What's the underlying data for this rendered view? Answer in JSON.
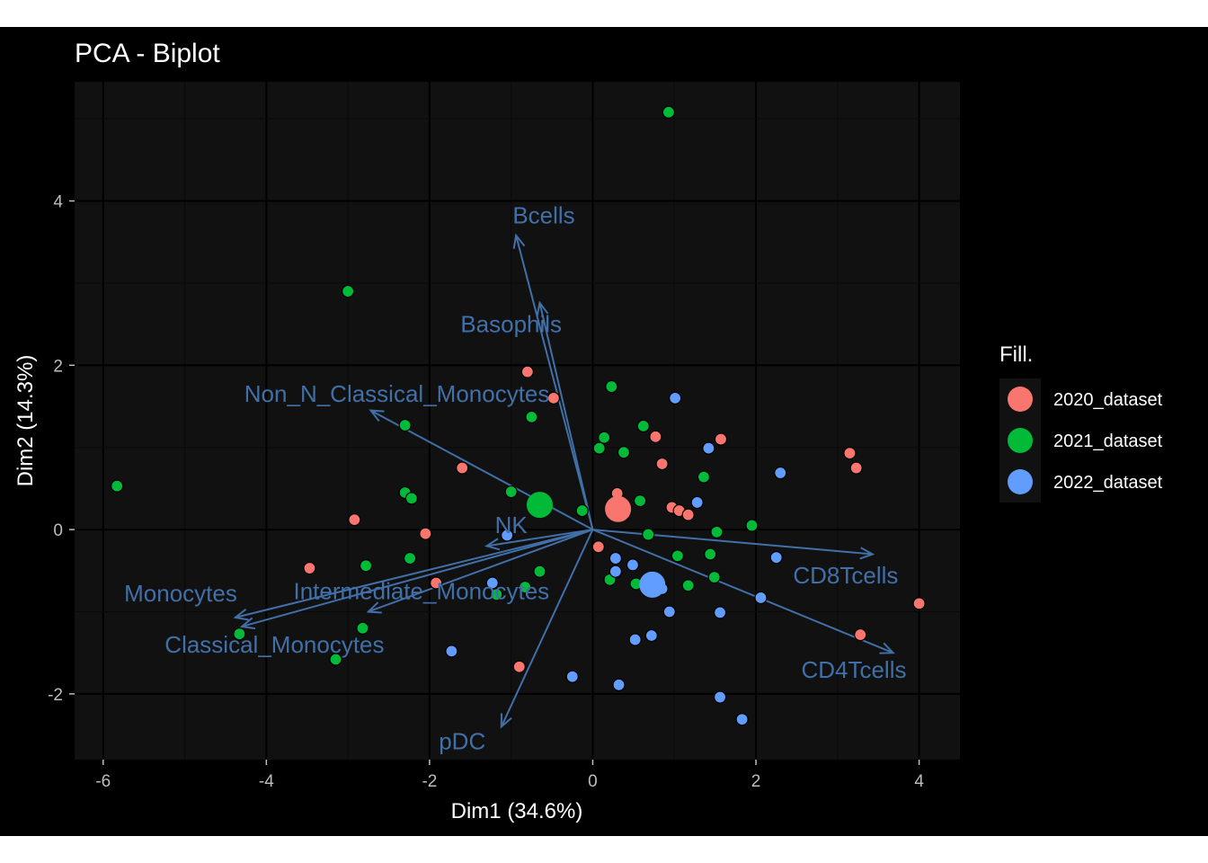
{
  "chart_data": {
    "type": "scatter",
    "title": "PCA - Biplot",
    "xlabel": "Dim1 (34.6%)",
    "ylabel": "Dim2 (14.3%)",
    "xlim": [
      -6.35,
      4.5
    ],
    "ylim": [
      -2.8,
      5.45
    ],
    "x_ticks": [
      -6,
      -4,
      -2,
      0,
      2,
      4
    ],
    "y_ticks": [
      -2,
      0,
      2,
      4
    ],
    "x_tick_labels": [
      "-6",
      "-4",
      "-2",
      "0",
      "2",
      "4"
    ],
    "y_tick_labels": [
      "-2",
      "0",
      "2",
      "4"
    ],
    "grid": true,
    "legend": {
      "title": "Fill.",
      "position": "right",
      "entries": [
        {
          "name": "2020_dataset",
          "color": "#F8766D"
        },
        {
          "name": "2021_dataset",
          "color": "#00BA38"
        },
        {
          "name": "2022_dataset",
          "color": "#619CFF"
        }
      ]
    },
    "series": [
      {
        "name": "2020_dataset",
        "color": "#F8766D",
        "points": [
          [
            -0.8,
            1.92
          ],
          [
            -0.48,
            1.6
          ],
          [
            -1.6,
            0.75
          ],
          [
            -2.92,
            0.12
          ],
          [
            -2.05,
            -0.05
          ],
          [
            -3.47,
            -0.47
          ],
          [
            -1.92,
            -0.65
          ],
          [
            -0.9,
            -1.67
          ],
          [
            0.07,
            -0.21
          ],
          [
            0.3,
            0.44
          ],
          [
            0.85,
            0.8
          ],
          [
            0.77,
            1.13
          ],
          [
            0.97,
            0.27
          ],
          [
            1.06,
            0.23
          ],
          [
            1.17,
            0.18
          ],
          [
            1.57,
            1.1
          ],
          [
            3.15,
            0.93
          ],
          [
            3.23,
            0.75
          ],
          [
            4.0,
            -0.9
          ],
          [
            3.28,
            -1.28
          ]
        ],
        "centroid": [
          0.31,
          0.25
        ]
      },
      {
        "name": "2021_dataset",
        "color": "#00BA38",
        "points": [
          [
            0.93,
            5.08
          ],
          [
            -3.0,
            2.9
          ],
          [
            -5.83,
            0.53
          ],
          [
            -2.3,
            1.27
          ],
          [
            -2.3,
            0.45
          ],
          [
            -2.22,
            0.38
          ],
          [
            -0.75,
            1.37
          ],
          [
            0.23,
            1.74
          ],
          [
            0.14,
            1.12
          ],
          [
            0.08,
            0.99
          ],
          [
            0.62,
            1.26
          ],
          [
            0.38,
            0.94
          ],
          [
            -1.0,
            0.46
          ],
          [
            -0.13,
            0.23
          ],
          [
            0.58,
            0.35
          ],
          [
            1.36,
            0.64
          ],
          [
            1.95,
            0.05
          ],
          [
            1.52,
            -0.03
          ],
          [
            0.68,
            -0.06
          ],
          [
            1.04,
            -0.32
          ],
          [
            1.44,
            -0.3
          ],
          [
            1.49,
            -0.58
          ],
          [
            1.17,
            -0.68
          ],
          [
            0.21,
            -0.61
          ],
          [
            0.53,
            -0.66
          ],
          [
            -0.65,
            -0.51
          ],
          [
            -0.83,
            -0.7
          ],
          [
            -1.18,
            -0.79
          ],
          [
            -2.78,
            -0.44
          ],
          [
            -2.24,
            -0.35
          ],
          [
            -2.82,
            -1.2
          ],
          [
            -4.33,
            -1.27
          ],
          [
            -3.15,
            -1.58
          ]
        ],
        "centroid": [
          -0.65,
          0.3
        ]
      },
      {
        "name": "2022_dataset",
        "color": "#619CFF",
        "points": [
          [
            1.01,
            1.6
          ],
          [
            1.42,
            0.99
          ],
          [
            2.3,
            0.69
          ],
          [
            1.28,
            0.33
          ],
          [
            -1.05,
            -0.07
          ],
          [
            0.28,
            -0.35
          ],
          [
            0.28,
            -0.51
          ],
          [
            0.49,
            -0.43
          ],
          [
            2.25,
            -0.34
          ],
          [
            2.06,
            -0.83
          ],
          [
            0.85,
            -0.72
          ],
          [
            1.56,
            -1.01
          ],
          [
            0.94,
            -1.0
          ],
          [
            0.72,
            -1.29
          ],
          [
            0.52,
            -1.34
          ],
          [
            0.32,
            -1.89
          ],
          [
            -1.23,
            -0.65
          ],
          [
            -1.73,
            -1.48
          ],
          [
            -0.25,
            -1.79
          ],
          [
            1.56,
            -2.04
          ],
          [
            1.83,
            -2.31
          ]
        ],
        "centroid": [
          0.73,
          -0.67
        ]
      }
    ],
    "variables": [
      {
        "name": "Bcells",
        "x": -0.94,
        "y": 3.58,
        "label_x": -0.6,
        "label_y": 3.8
      },
      {
        "name": "Basophils",
        "x": -0.65,
        "y": 2.76,
        "label_x": -1.0,
        "label_y": 2.48
      },
      {
        "name": "Non_N_Classical_Monocytes",
        "x": -2.72,
        "y": 1.45,
        "label_x": -2.4,
        "label_y": 1.63
      },
      {
        "name": "NK",
        "x": -1.3,
        "y": -0.2,
        "label_x": -1.0,
        "label_y": 0.03
      },
      {
        "name": "Monocytes",
        "x": -4.38,
        "y": -1.07,
        "label_x": -5.05,
        "label_y": -0.8
      },
      {
        "name": "Classical_Monocytes",
        "x": -4.3,
        "y": -1.18,
        "label_x": -3.9,
        "label_y": -1.42
      },
      {
        "name": "Intermediate_Monocytes",
        "x": -2.75,
        "y": -1.0,
        "label_x": -2.1,
        "label_y": -0.77
      },
      {
        "name": "pDC",
        "x": -1.12,
        "y": -2.4,
        "label_x": -1.6,
        "label_y": -2.6
      },
      {
        "name": "CD8Tcells",
        "x": 3.43,
        "y": -0.3,
        "label_x": 3.1,
        "label_y": -0.58
      },
      {
        "name": "CD4Tcells",
        "x": 3.68,
        "y": -1.5,
        "label_x": 3.2,
        "label_y": -1.73
      }
    ],
    "colors": {
      "variable_arrow": "#4170A8",
      "panel_background": "#111111",
      "grid_major": "#000000",
      "grid_minor": "#0a0a0a",
      "outer_background": "#000000"
    }
  }
}
